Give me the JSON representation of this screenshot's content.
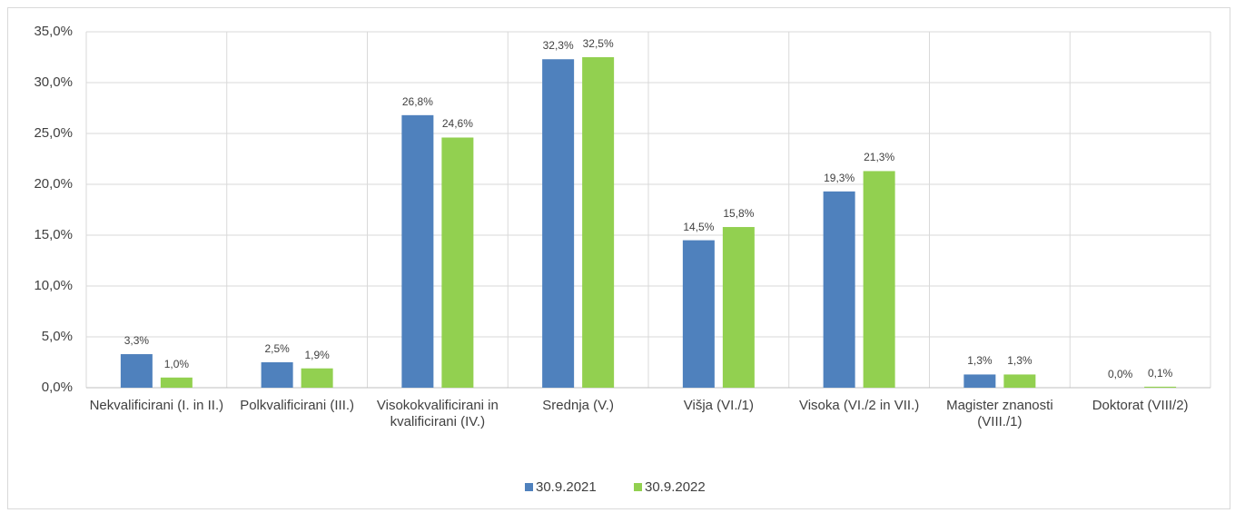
{
  "chart_data": {
    "type": "bar",
    "categories": [
      "Nekvalificirani (I. in II.)",
      "Polkvalificirani (III.)",
      "Visokokvalificirani in kvalificirani (IV.)",
      "Srednja (V.)",
      "Višja (VI./1)",
      "Visoka (VI./2 in VII.)",
      "Magister znanosti (VIII./1)",
      "Doktorat (VIII/2)"
    ],
    "series": [
      {
        "name": "30.9.2021",
        "color": "#4f81bd",
        "values": [
          3.3,
          2.5,
          26.8,
          32.3,
          14.5,
          19.3,
          1.3,
          0.0
        ],
        "value_labels": [
          "3,3%",
          "2,5%",
          "26,8%",
          "32,3%",
          "14,5%",
          "19,3%",
          "1,3%",
          "0,0%"
        ]
      },
      {
        "name": "30.9.2022",
        "color": "#92d050",
        "values": [
          1.0,
          1.9,
          24.6,
          32.5,
          15.8,
          21.3,
          1.3,
          0.1
        ],
        "value_labels": [
          "1,0%",
          "1,9%",
          "24,6%",
          "32,5%",
          "15,8%",
          "21,3%",
          "1,3%",
          "0,1%"
        ]
      }
    ],
    "ylim": [
      0,
      35
    ],
    "yticks": [
      {
        "value": 0,
        "label": "0,0%"
      },
      {
        "value": 5,
        "label": "5,0%"
      },
      {
        "value": 10,
        "label": "10,0%"
      },
      {
        "value": 15,
        "label": "15,0%"
      },
      {
        "value": 20,
        "label": "20,0%"
      },
      {
        "value": 25,
        "label": "25,0%"
      },
      {
        "value": 30,
        "label": "30,0%"
      },
      {
        "value": 35,
        "label": "35,0%"
      }
    ],
    "grid": true,
    "legend": "bottom"
  }
}
